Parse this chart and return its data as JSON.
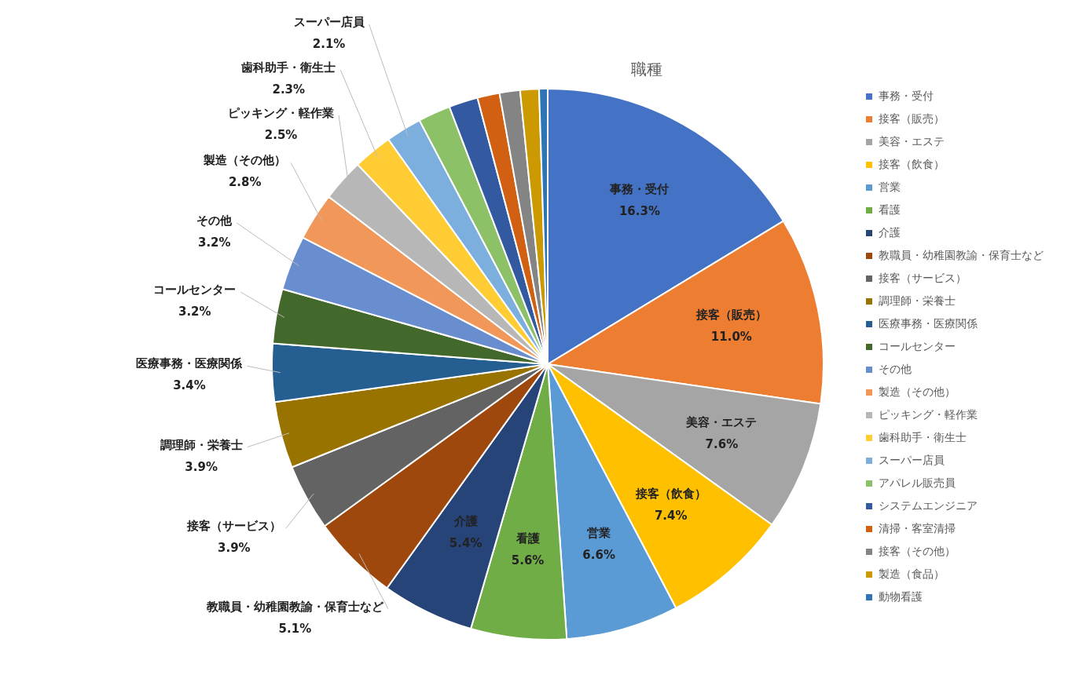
{
  "chart_data": {
    "type": "pie",
    "title": "職種",
    "categories": [
      "事務・受付",
      "接客（販売）",
      "美容・エステ",
      "接客（飲食）",
      "営業",
      "看護",
      "介護",
      "教職員・幼稚園教諭・保育士など",
      "接客（サービス）",
      "調理師・栄養士",
      "医療事務・医療関係",
      "コールセンター",
      "その他",
      "製造（その他）",
      "ピッキング・軽作業",
      "歯科助手・衛生士",
      "スーパー店員",
      "アパレル販売員",
      "システムエンジニア",
      "清掃・客室清掃",
      "接客（その他）",
      "製造（食品）",
      "動物看護"
    ],
    "values": [
      16.3,
      11.0,
      7.6,
      7.4,
      6.6,
      5.6,
      5.4,
      5.1,
      3.9,
      3.9,
      3.4,
      3.2,
      3.2,
      2.8,
      2.5,
      2.3,
      2.1,
      1.9,
      1.7,
      1.3,
      1.2,
      1.1,
      0.5
    ],
    "value_labels": [
      "16.3%",
      "11.0%",
      "7.6%",
      "7.4%",
      "6.6%",
      "5.6%",
      "5.4%",
      "5.1%",
      "3.9%",
      "3.9%",
      "3.4%",
      "3.2%",
      "3.2%",
      "2.8%",
      "2.5%",
      "2.3%",
      "2.1%",
      null,
      null,
      null,
      null,
      null,
      null
    ],
    "colors": [
      "#4472c4",
      "#ed7d31",
      "#a5a5a5",
      "#ffc000",
      "#5b9bd5",
      "#70ad47",
      "#264478",
      "#9e480e",
      "#636363",
      "#997300",
      "#255e91",
      "#43682b",
      "#698ed0",
      "#f1975a",
      "#b7b7b7",
      "#ffcd33",
      "#7cafdd",
      "#8cc168",
      "#335aa1",
      "#d26012",
      "#848484",
      "#cc9a00",
      "#2e75b6"
    ],
    "legend": "right"
  }
}
